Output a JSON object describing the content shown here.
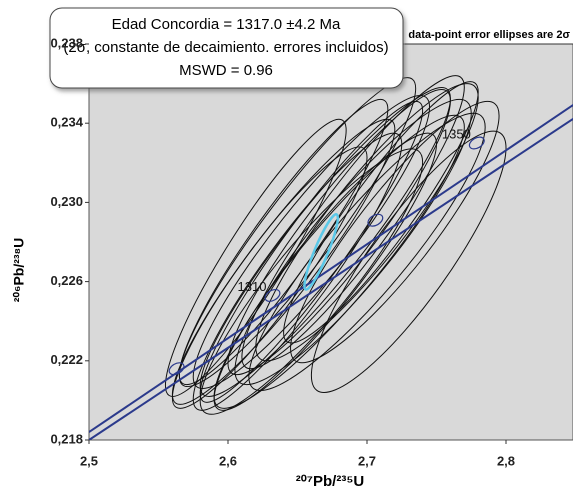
{
  "chart_data": {
    "type": "concordia",
    "title": "Edad Concordia = 1317.0 ±4.2 Ma",
    "subtitle": "(2σ, constante de decaimiento. errores incluidos)",
    "mswd": "MSWD = 0.96",
    "note": "data-point error ellipses are 2σ",
    "x_label": "²⁰⁷Pb/²³⁵U",
    "y_label": "²⁰⁶Pb/²³⁸U",
    "xlim": [
      2.5,
      2.85
    ],
    "ylim": [
      0.218,
      0.238
    ],
    "xticks": [
      {
        "value": 2.5,
        "label": "2,5"
      },
      {
        "value": 2.6,
        "label": "2,6"
      },
      {
        "value": 2.7,
        "label": "2,7"
      },
      {
        "value": 2.8,
        "label": "2,8"
      }
    ],
    "yticks": [
      {
        "value": 0.218,
        "label": "0,218"
      },
      {
        "value": 0.222,
        "label": "0,222"
      },
      {
        "value": 0.226,
        "label": "0,226"
      },
      {
        "value": 0.23,
        "label": "0,230"
      },
      {
        "value": 0.234,
        "label": "0,234"
      },
      {
        "value": 0.238,
        "label": "0,238"
      }
    ],
    "background": "#d9d9d9",
    "ellipse_color": "#111111",
    "mean_color": "#5bc8e8",
    "concordia_color": "#2b3a8c",
    "concordia": [
      {
        "x": [
          2.5,
          2.85
        ],
        "y": [
          0.2184,
          0.235
        ]
      },
      {
        "x": [
          2.5,
          2.85
        ],
        "y": [
          0.218,
          0.2343
        ]
      }
    ],
    "age_markers": [
      {
        "x": 2.563,
        "y": 0.2216
      },
      {
        "x": 2.632,
        "y": 0.2253,
        "age": 1310
      },
      {
        "x": 2.706,
        "y": 0.2291
      },
      {
        "x": 2.779,
        "y": 0.233,
        "age": 1350
      }
    ],
    "mean": {
      "x": 2.667,
      "y": 0.2275,
      "x_err": 0.012,
      "y_err": 0.0019,
      "rho": 0.9
    },
    "ellipses": [
      {
        "x": 2.64,
        "y": 0.227,
        "x_err": 0.08,
        "y_err": 0.0072,
        "rho": 0.93
      },
      {
        "x": 2.66,
        "y": 0.228,
        "x_err": 0.085,
        "y_err": 0.0074,
        "rho": 0.92
      },
      {
        "x": 2.68,
        "y": 0.2285,
        "x_err": 0.08,
        "y_err": 0.0072,
        "rho": 0.92
      },
      {
        "x": 2.65,
        "y": 0.2265,
        "x_err": 0.075,
        "y_err": 0.007,
        "rho": 0.92
      },
      {
        "x": 2.7,
        "y": 0.229,
        "x_err": 0.08,
        "y_err": 0.007,
        "rho": 0.9
      },
      {
        "x": 2.67,
        "y": 0.228,
        "x_err": 0.09,
        "y_err": 0.0078,
        "rho": 0.93
      },
      {
        "x": 2.63,
        "y": 0.2262,
        "x_err": 0.07,
        "y_err": 0.0066,
        "rho": 0.92
      },
      {
        "x": 2.69,
        "y": 0.228,
        "x_err": 0.085,
        "y_err": 0.0072,
        "rho": 0.9
      },
      {
        "x": 2.66,
        "y": 0.2275,
        "x_err": 0.08,
        "y_err": 0.0076,
        "rho": 0.94
      },
      {
        "x": 2.72,
        "y": 0.2285,
        "x_err": 0.075,
        "y_err": 0.0066,
        "rho": 0.89
      },
      {
        "x": 2.62,
        "y": 0.2272,
        "x_err": 0.065,
        "y_err": 0.007,
        "rho": 0.92
      },
      {
        "x": 2.68,
        "y": 0.227,
        "x_err": 0.09,
        "y_err": 0.0074,
        "rho": 0.92
      },
      {
        "x": 2.7,
        "y": 0.2275,
        "x_err": 0.085,
        "y_err": 0.007,
        "rho": 0.9
      },
      {
        "x": 2.64,
        "y": 0.228,
        "x_err": 0.075,
        "y_err": 0.0072,
        "rho": 0.93
      },
      {
        "x": 2.67,
        "y": 0.2265,
        "x_err": 0.08,
        "y_err": 0.007,
        "rho": 0.92
      },
      {
        "x": 2.71,
        "y": 0.2295,
        "x_err": 0.07,
        "y_err": 0.0066,
        "rho": 0.92
      },
      {
        "x": 2.65,
        "y": 0.2285,
        "x_err": 0.085,
        "y_err": 0.0078,
        "rho": 0.93
      },
      {
        "x": 2.69,
        "y": 0.229,
        "x_err": 0.08,
        "y_err": 0.0074,
        "rho": 0.92
      },
      {
        "x": 2.66,
        "y": 0.226,
        "x_err": 0.08,
        "y_err": 0.0067,
        "rho": 0.9
      },
      {
        "x": 2.73,
        "y": 0.227,
        "x_err": 0.07,
        "y_err": 0.0066,
        "rho": 0.87
      }
    ]
  }
}
